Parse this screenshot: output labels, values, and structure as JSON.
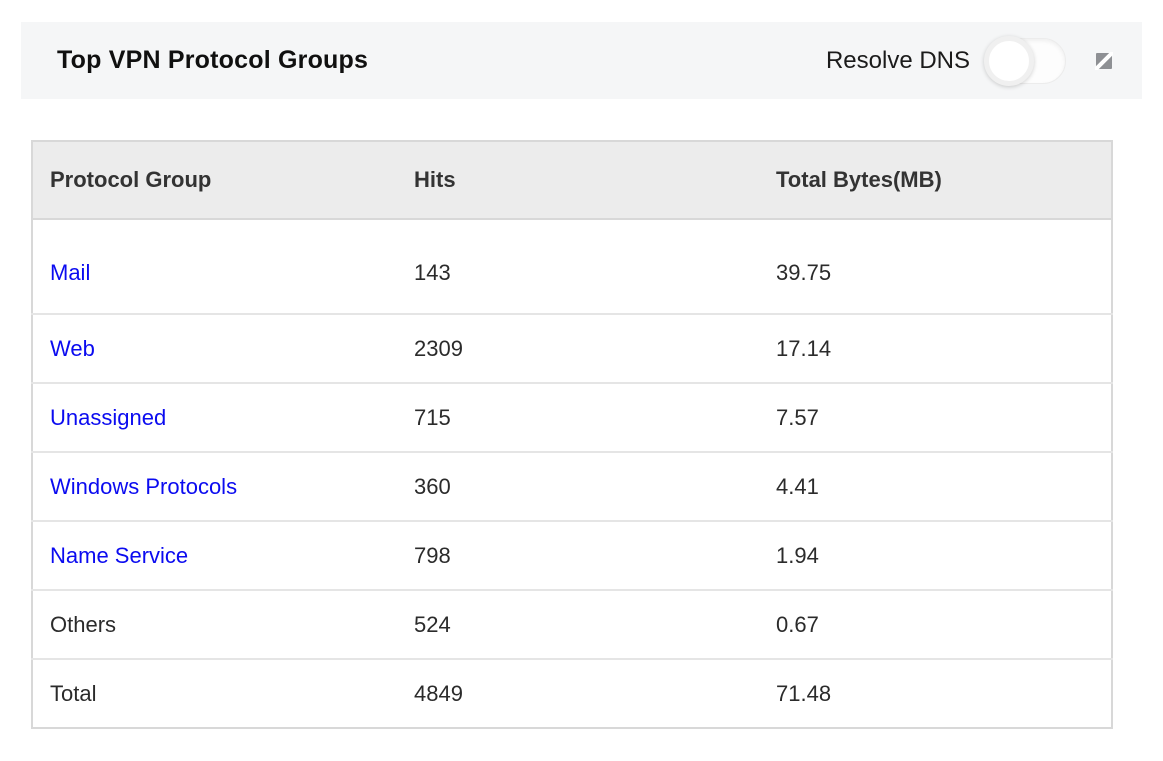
{
  "widget": {
    "title": "Top VPN Protocol Groups",
    "resolve_dns_label": "Resolve DNS",
    "resolve_dns_enabled": false,
    "resize_icon": "resize-icon"
  },
  "table": {
    "columns": [
      "Protocol Group",
      "Hits",
      "Total Bytes(MB)"
    ],
    "rows": [
      {
        "protocol": "Mail",
        "hits": "143",
        "total_bytes_mb": "39.75",
        "link": true
      },
      {
        "protocol": "Web",
        "hits": "2309",
        "total_bytes_mb": "17.14",
        "link": true
      },
      {
        "protocol": "Unassigned",
        "hits": "715",
        "total_bytes_mb": "7.57",
        "link": true
      },
      {
        "protocol": "Windows Protocols",
        "hits": "360",
        "total_bytes_mb": "4.41",
        "link": true
      },
      {
        "protocol": "Name Service",
        "hits": "798",
        "total_bytes_mb": "1.94",
        "link": true
      },
      {
        "protocol": "Others",
        "hits": "524",
        "total_bytes_mb": "0.67",
        "link": false
      },
      {
        "protocol": "Total",
        "hits": "4849",
        "total_bytes_mb": "71.48",
        "link": false
      }
    ]
  },
  "colors": {
    "link_blue": "#0b0bf0",
    "header_bar_bg": "#f5f6f7",
    "table_header_bg": "#ececec",
    "border": "#d8d8d8",
    "row_divider": "#e5e5e5",
    "text": "#2b2b2b",
    "icon_gray": "#8e9094"
  }
}
